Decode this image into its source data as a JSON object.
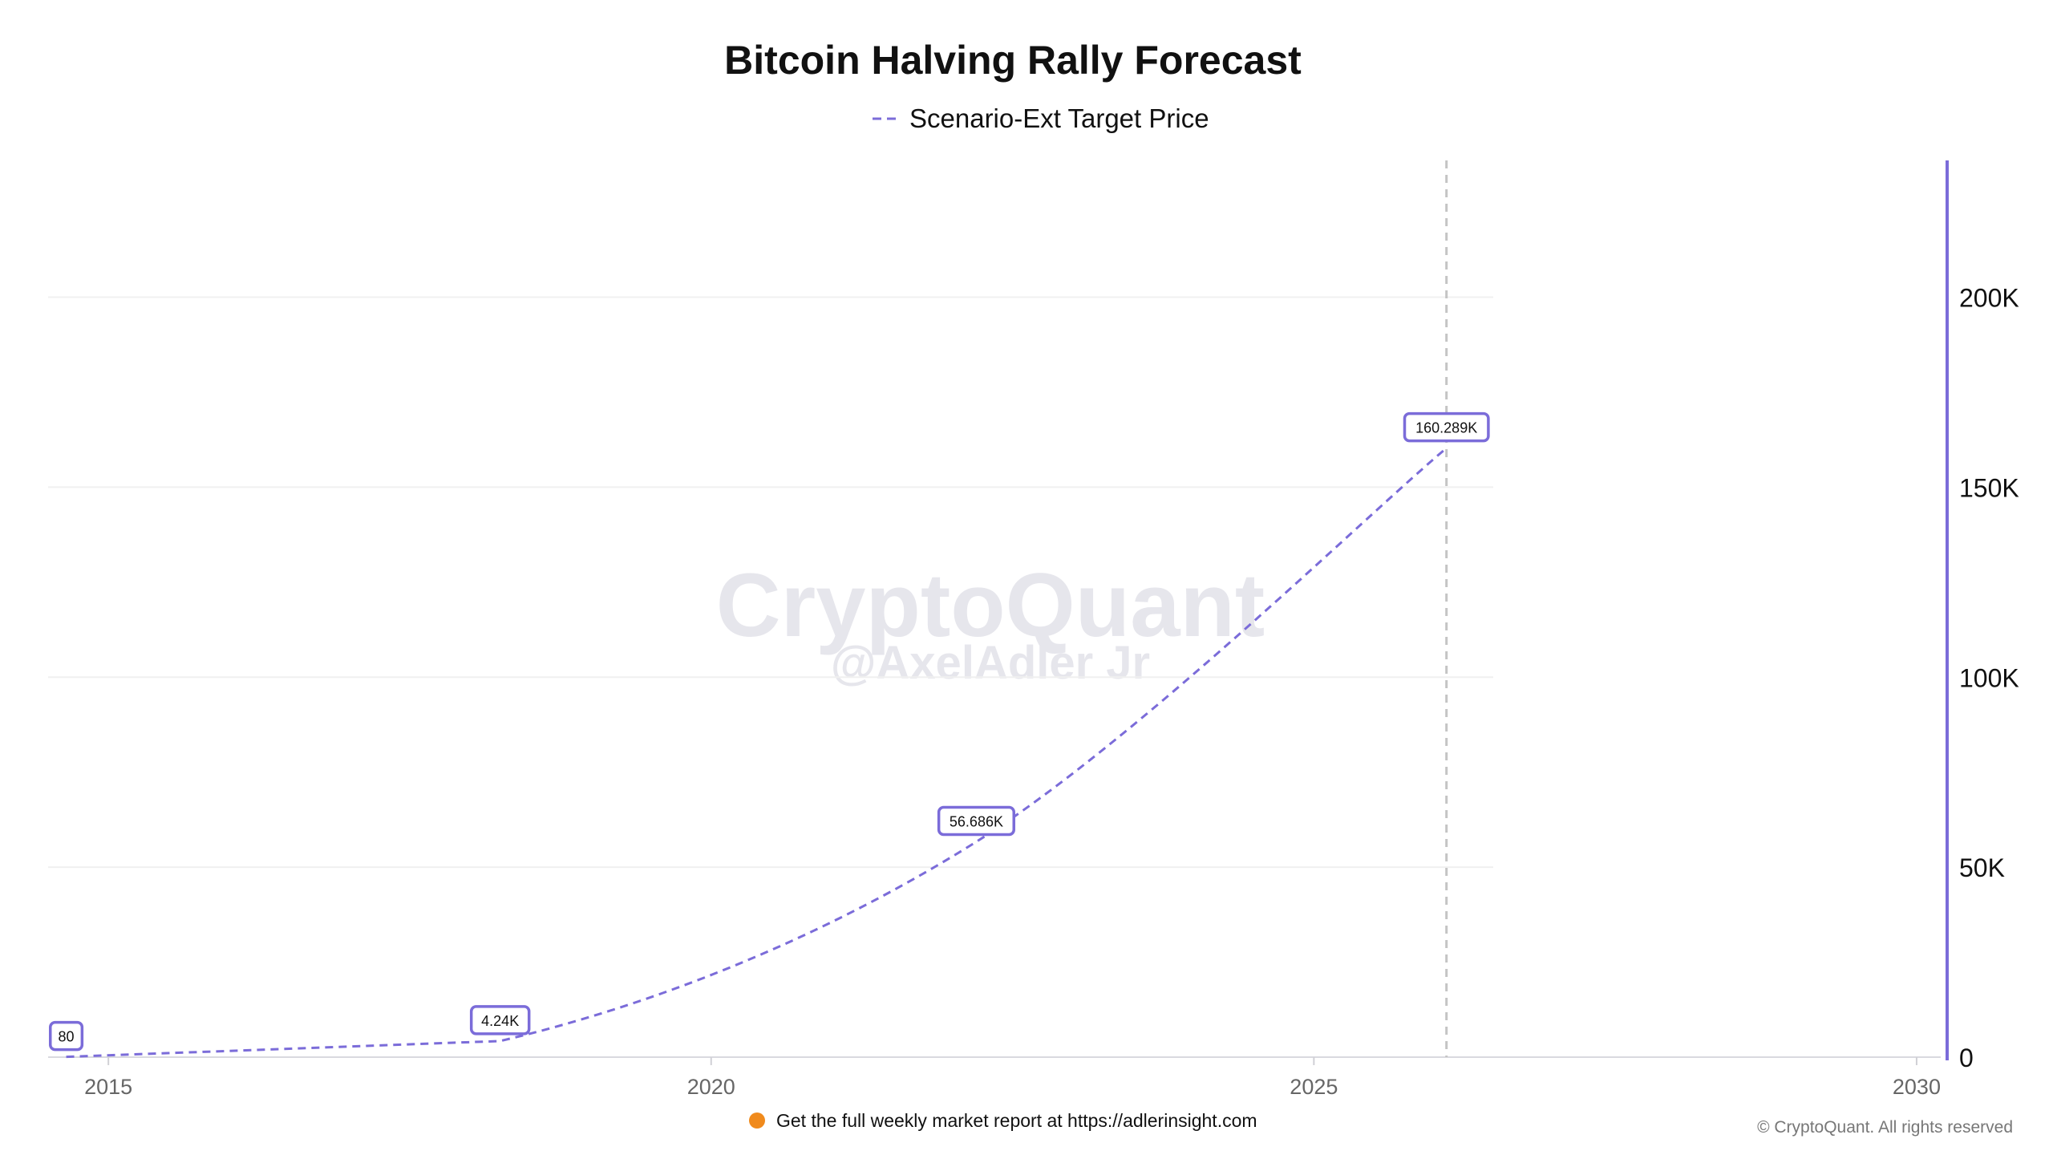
{
  "chart_data": {
    "type": "line",
    "title": "Bitcoin Halving Rally Forecast",
    "series": [
      {
        "name": "Scenario-Ext Target Price",
        "color": "#7b6cd9",
        "style": "dashed",
        "points": [
          {
            "x": 2014.65,
            "y": 80,
            "label": "80"
          },
          {
            "x": 2018.25,
            "y": 4240,
            "label": "4.24K"
          },
          {
            "x": 2022.2,
            "y": 56686,
            "label": "56.686K"
          },
          {
            "x": 2026.1,
            "y": 160289,
            "label": "160.289K"
          }
        ]
      }
    ],
    "x_ticks": [
      2015,
      2020,
      2025,
      2030
    ],
    "x_tick_labels": [
      "2015",
      "2020",
      "2025",
      "2030"
    ],
    "xlim": [
      2014.5,
      2030.2
    ],
    "y_ticks": [
      0,
      50000,
      100000,
      150000,
      200000
    ],
    "y_tick_labels": [
      "0",
      "50K",
      "100K",
      "150K",
      "200K"
    ],
    "ylim": [
      0,
      236000
    ],
    "y_axis_side": "right",
    "y_axis_color": "#7b6cd9",
    "grid": true,
    "vertical_marker_x": 2026.1,
    "legend_position": "top-center"
  },
  "watermark": {
    "line1": "CryptoQuant",
    "line2": "@AxelAdler Jr"
  },
  "footer": {
    "icon": "orange-circle-icon",
    "text": "Get the full weekly market report at https://adlerinsight.com"
  },
  "copyright": "© CryptoQuant. All rights reserved"
}
